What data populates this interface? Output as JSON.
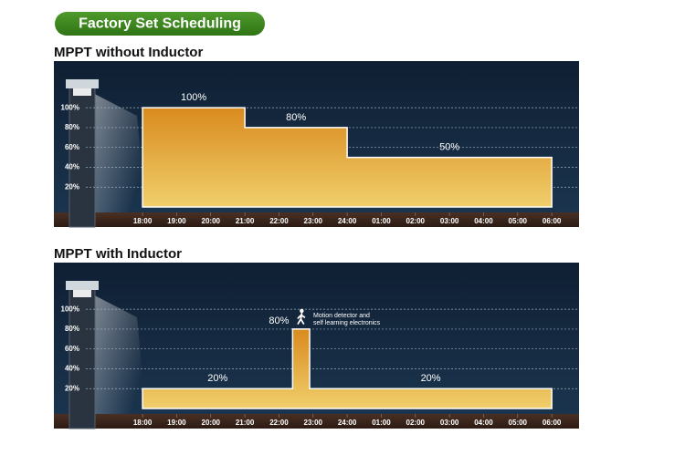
{
  "header": "Factory Set Scheduling",
  "chart_data": [
    {
      "type": "step-area",
      "title": "MPPT without Inductor",
      "x": [
        18,
        21,
        24,
        30
      ],
      "values": [
        100,
        80,
        50,
        50
      ],
      "value_labels": [
        "100%",
        "80%",
        "50%",
        null
      ],
      "xlim": [
        15.4,
        30.8
      ],
      "xticks": [
        {
          "value": 18,
          "label": "18:00"
        },
        {
          "value": 19,
          "label": "19:00"
        },
        {
          "value": 20,
          "label": "20:00"
        },
        {
          "value": 21,
          "label": "21:00"
        },
        {
          "value": 22,
          "label": "22:00"
        },
        {
          "value": 23,
          "label": "23:00"
        },
        {
          "value": 24,
          "label": "24:00"
        },
        {
          "value": 25,
          "label": "01:00"
        },
        {
          "value": 26,
          "label": "02:00"
        },
        {
          "value": 27,
          "label": "03:00"
        },
        {
          "value": 28,
          "label": "04:00"
        },
        {
          "value": 29,
          "label": "05:00"
        },
        {
          "value": 30,
          "label": "06:00"
        }
      ],
      "ylim": [
        0,
        147
      ],
      "yticks": [
        {
          "value": 20,
          "label": "20%"
        },
        {
          "value": 40,
          "label": "40%"
        },
        {
          "value": 60,
          "label": "60%"
        },
        {
          "value": 80,
          "label": "80%"
        },
        {
          "value": 100,
          "label": "100%"
        }
      ],
      "grid": true,
      "color": "#e9a43a"
    },
    {
      "type": "step-area",
      "title": "MPPT with Inductor",
      "x": [
        18,
        22.4,
        22.9,
        30
      ],
      "values": [
        20,
        80,
        20,
        20
      ],
      "value_labels": [
        "20%",
        "80%",
        "20%",
        null
      ],
      "annotation": [
        "Motion detector and",
        "self learning electronics"
      ],
      "xlim": [
        15.4,
        30.8
      ],
      "xticks": [
        {
          "value": 18,
          "label": "18:00"
        },
        {
          "value": 19,
          "label": "19:00"
        },
        {
          "value": 20,
          "label": "20:00"
        },
        {
          "value": 21,
          "label": "21:00"
        },
        {
          "value": 22,
          "label": "22:00"
        },
        {
          "value": 23,
          "label": "23:00"
        },
        {
          "value": 24,
          "label": "24:00"
        },
        {
          "value": 25,
          "label": "01:00"
        },
        {
          "value": 26,
          "label": "02:00"
        },
        {
          "value": 27,
          "label": "03:00"
        },
        {
          "value": 28,
          "label": "04:00"
        },
        {
          "value": 29,
          "label": "05:00"
        },
        {
          "value": 30,
          "label": "06:00"
        }
      ],
      "ylim": [
        0,
        147
      ],
      "yticks": [
        {
          "value": 20,
          "label": "20%"
        },
        {
          "value": 40,
          "label": "40%"
        },
        {
          "value": 60,
          "label": "60%"
        },
        {
          "value": 80,
          "label": "80%"
        },
        {
          "value": 100,
          "label": "100%"
        }
      ],
      "grid": true,
      "color": "#e9a43a"
    }
  ]
}
